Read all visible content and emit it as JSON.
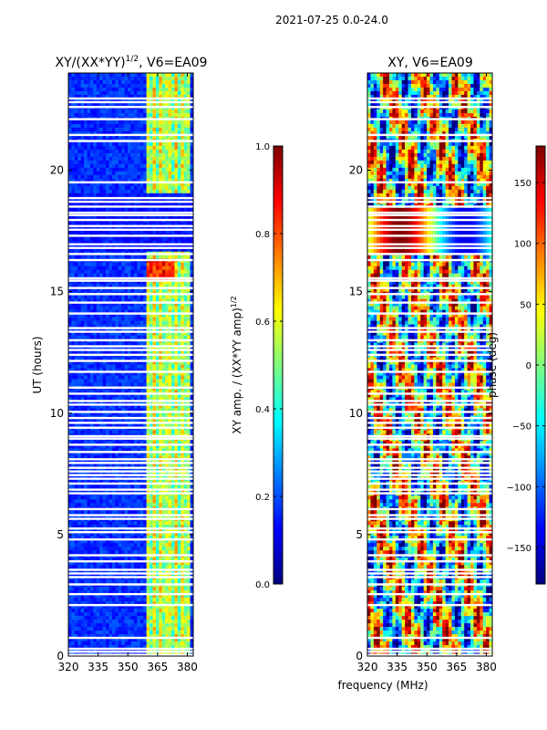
{
  "figure": {
    "suptitle": "2021-07-25 0.0-24.0",
    "xlabel_shared": "frequency (MHz)"
  },
  "colors": {
    "jet": [
      "#00007f",
      "#0000ff",
      "#007fff",
      "#00ffff",
      "#7fff7f",
      "#ffff00",
      "#ff7f00",
      "#ff0000",
      "#7f0000"
    ],
    "gap": "#ffffff"
  },
  "chart_data": [
    {
      "type": "heatmap",
      "panel": "amplitude",
      "title_main": "XY/(XX*YY)",
      "title_sup": "1/2",
      "title_tail": ", V6=EA09",
      "xlabel": "",
      "ylabel": "UT (hours)",
      "xlim": [
        320,
        383
      ],
      "ylim": [
        0,
        24
      ],
      "xticks": [
        320,
        335,
        350,
        365,
        380
      ],
      "yticks": [
        0,
        5,
        10,
        15,
        20
      ],
      "bright_band_mhz": [
        360,
        382
      ],
      "colorbar": {
        "label_main": "XY amp. / (XX*YY amp)",
        "label_sup": "1/2",
        "range": [
          0.0,
          1.0
        ],
        "ticks": [
          0.0,
          0.2,
          0.4,
          0.6,
          0.8,
          1.0
        ],
        "tick_labels": [
          "0.0",
          "0.2",
          "0.4",
          "0.6",
          "0.8",
          "1.0"
        ]
      }
    },
    {
      "type": "heatmap",
      "panel": "phase",
      "title": "XY, V6=EA09",
      "xlabel": "frequency (MHz)",
      "ylabel": "",
      "xlim": [
        320,
        383
      ],
      "ylim": [
        0,
        24
      ],
      "xticks": [
        320,
        335,
        350,
        365,
        380
      ],
      "yticks": [
        0,
        5,
        10,
        15,
        20
      ],
      "colorbar": {
        "label": "phase (deg)",
        "range": [
          -180,
          180
        ],
        "ticks": [
          -150,
          -100,
          -50,
          0,
          50,
          100,
          150
        ],
        "tick_labels": [
          "−150",
          "−100",
          "−50",
          "0",
          "50",
          "100",
          "150"
        ]
      }
    }
  ],
  "flagged_hours": [
    0.05,
    0.18,
    0.3,
    0.75,
    2.1,
    2.55,
    2.95,
    3.25,
    3.4,
    3.55,
    3.9,
    4.15,
    4.8,
    5.1,
    5.25,
    5.65,
    5.8,
    6.05,
    6.7,
    6.85,
    7.1,
    7.3,
    7.45,
    7.6,
    7.75,
    7.95,
    8.1,
    8.4,
    8.7,
    8.95,
    9.05,
    9.4,
    9.6,
    9.8,
    10.05,
    10.35,
    10.5,
    10.8,
    11.05,
    11.7,
    12.15,
    12.4,
    12.6,
    12.75,
    13.0,
    13.35,
    13.5,
    14.1,
    14.55,
    14.9,
    15.15,
    15.45,
    15.55,
    16.3,
    16.55,
    16.8,
    16.95,
    17.3,
    17.55,
    17.7,
    17.95,
    18.15,
    18.25,
    18.5,
    18.7,
    18.85,
    19.5,
    21.2,
    21.45,
    22.1,
    22.6,
    22.8,
    22.95
  ]
}
